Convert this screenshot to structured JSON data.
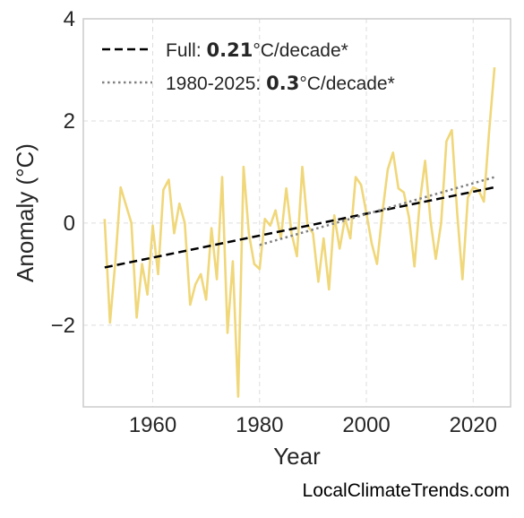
{
  "chart_data": {
    "type": "line",
    "xlabel": "Year",
    "ylabel": "Anomaly (°C)",
    "xlim": [
      1947,
      2027
    ],
    "ylim": [
      -3.6,
      4.0
    ],
    "xticks": [
      1960,
      1980,
      2000,
      2020
    ],
    "yticks": [
      4,
      2,
      0,
      -2
    ],
    "ytick_labels": [
      "4",
      "2",
      "0",
      "−2"
    ],
    "grid": true,
    "legend_position": "top-left",
    "colors": {
      "series": "#f0d77a",
      "full_trend": "#000000",
      "recent_trend": "#808080",
      "grid": "#dddddd",
      "frame": "#cccccc"
    },
    "series": [
      {
        "x": [
          1951,
          1952,
          1953,
          1954,
          1955,
          1956,
          1957,
          1958,
          1959,
          1960,
          1961,
          1962,
          1963,
          1964,
          1965,
          1966,
          1967,
          1968,
          1969,
          1970,
          1971,
          1972,
          1973,
          1974,
          1975,
          1976,
          1977,
          1978,
          1979,
          1980,
          1981,
          1982,
          1983,
          1984,
          1985,
          1986,
          1987,
          1988,
          1989,
          1990,
          1991,
          1992,
          1993,
          1994,
          1995,
          1996,
          1997,
          1998,
          1999,
          2000,
          2001,
          2002,
          2003,
          2004,
          2005,
          2006,
          2007,
          2008,
          2009,
          2010,
          2011,
          2012,
          2013,
          2014,
          2015,
          2016,
          2017,
          2018,
          2019,
          2020,
          2021,
          2022,
          2023,
          2024
        ],
        "y": [
          0.08,
          -1.95,
          -0.75,
          0.7,
          0.35,
          0.0,
          -1.85,
          -0.8,
          -1.4,
          -0.05,
          -1.0,
          0.65,
          0.85,
          -0.2,
          0.38,
          0.0,
          -1.6,
          -1.2,
          -1.0,
          -1.5,
          -0.1,
          -1.1,
          0.9,
          -2.15,
          -0.75,
          -3.4,
          1.1,
          -0.2,
          -0.8,
          -0.9,
          0.08,
          -0.05,
          0.25,
          -0.3,
          0.68,
          -0.2,
          -0.65,
          1.1,
          -0.05,
          -0.2,
          -1.15,
          -0.3,
          -1.3,
          0.15,
          -0.5,
          0.1,
          -0.3,
          0.9,
          0.75,
          0.2,
          -0.4,
          -0.8,
          0.2,
          1.05,
          1.38,
          0.68,
          0.6,
          0.1,
          -0.85,
          0.4,
          1.22,
          0.05,
          -0.7,
          0.0,
          1.6,
          1.82,
          0.2,
          -1.1,
          0.5,
          0.7,
          0.65,
          0.42,
          1.8,
          3.05
        ]
      }
    ],
    "trends": [
      {
        "label_prefix": "Full: ",
        "label_value": "0.21",
        "label_suffix": "°C/decade*",
        "x": [
          1951,
          2024
        ],
        "y": [
          -0.87,
          0.7
        ],
        "style": "dashed"
      },
      {
        "label_prefix": "1980-2025: ",
        "label_value": "0.3",
        "label_suffix": "°C/decade*",
        "x": [
          1980,
          2024
        ],
        "y": [
          -0.43,
          0.9
        ],
        "style": "dotted"
      }
    ]
  },
  "footer": {
    "source": "LocalClimateTrends.com"
  }
}
